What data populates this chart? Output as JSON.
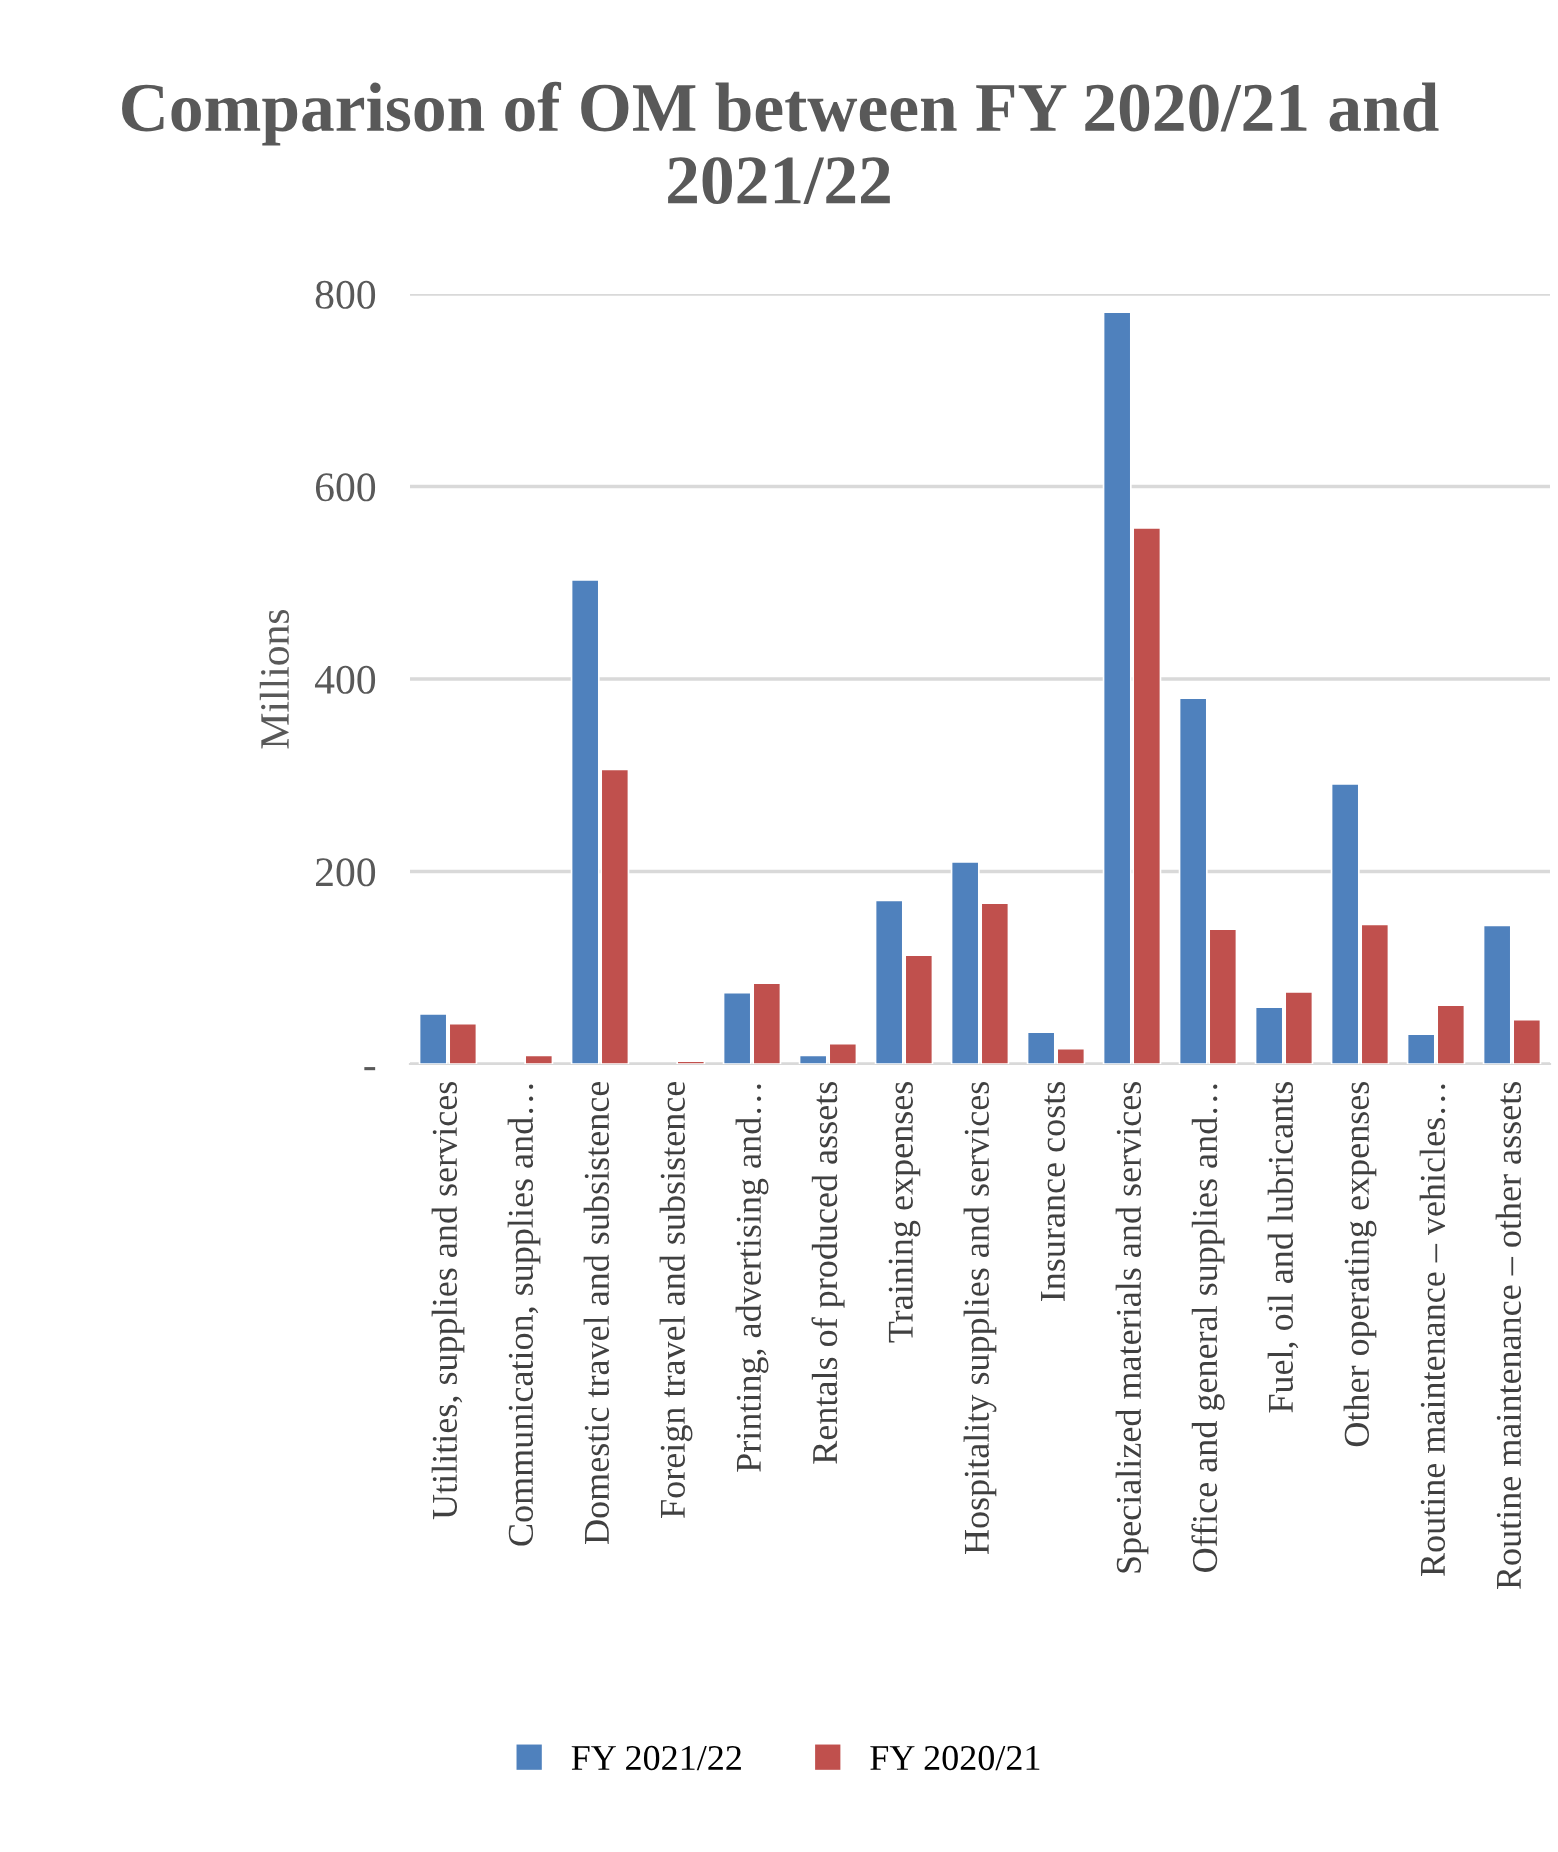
{
  "chart_data": {
    "type": "bar",
    "title": "Comparison of OM between FY 2020/21 and 2021/22",
    "ylabel": "Millions",
    "categories": [
      "Utilities, supplies and services",
      "Communication, supplies and…",
      "Domestic travel and subsistence",
      "Foreign travel and subsistence",
      "Printing, advertising and…",
      "Rentals of produced assets",
      "Training expenses",
      "Hospitality supplies and services",
      "Insurance costs",
      "Specialized materials and services",
      "Office and general supplies and…",
      "Fuel, oil and lubricants",
      "Other operating expenses",
      "Routine maintenance – vehicles…",
      "Routine maintenance – other assets"
    ],
    "series": [
      {
        "name": "FY 2021/22",
        "color": "#4f81bd",
        "values": [
          52,
          null,
          503,
          null,
          74,
          9,
          170,
          210,
          33,
          781,
          380,
          59,
          291,
          31,
          144
        ]
      },
      {
        "name": "FY 2020/21",
        "color": "#c0504d",
        "values": [
          42,
          9,
          306,
          3,
          84,
          21,
          113,
          167,
          16,
          557,
          140,
          75,
          145,
          61,
          46
        ]
      }
    ],
    "ylim": [
      0,
      800
    ],
    "yticks": [
      {
        "value": 0,
        "label": "-"
      },
      200,
      400,
      600,
      800
    ],
    "grid": "y",
    "legend": "bottom"
  }
}
